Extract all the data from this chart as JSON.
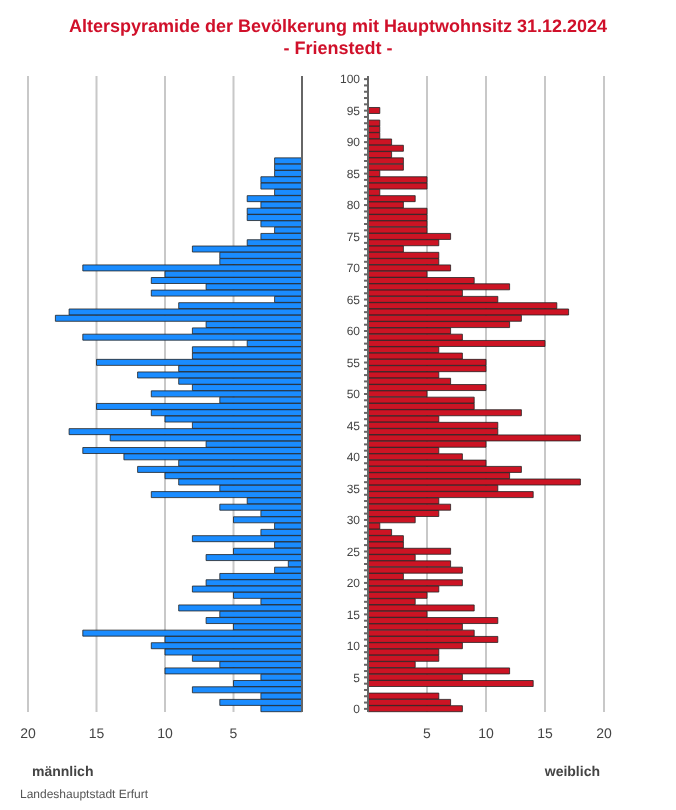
{
  "chart_data": [
    {
      "type": "bar",
      "orientation": "horizontal",
      "title": "Alterspyramide der Bevölkerung mit Hauptwohnsitz 31.12.2024\n- Frienstedt -",
      "xlabel": "männlich",
      "annotations": [
        "Landeshauptstadt Erfurt"
      ],
      "categories": [
        "100",
        null,
        null,
        null,
        null,
        "95",
        null,
        null,
        null,
        null,
        "90",
        null,
        null,
        null,
        null,
        "85",
        null,
        null,
        null,
        null,
        "80",
        null,
        null,
        null,
        null,
        "75",
        null,
        null,
        null,
        null,
        "70",
        null,
        null,
        null,
        null,
        "65",
        null,
        null,
        null,
        null,
        "60",
        null,
        null,
        null,
        null,
        "55",
        null,
        null,
        null,
        null,
        "50",
        null,
        null,
        null,
        null,
        "45",
        null,
        null,
        null,
        null,
        "40",
        null,
        null,
        null,
        null,
        "35",
        null,
        null,
        null,
        null,
        "30",
        null,
        null,
        null,
        null,
        "25",
        null,
        null,
        null,
        null,
        "20",
        null,
        null,
        null,
        null,
        "15",
        null,
        null,
        null,
        null,
        "10",
        null,
        null,
        null,
        null,
        "5",
        null,
        null,
        null,
        null,
        "0"
      ],
      "series": [
        {
          "color": "#1a8cff",
          "values": [
            0,
            0,
            0,
            0,
            0,
            0,
            0,
            0,
            0,
            0,
            0,
            0,
            0,
            2,
            2,
            2,
            3,
            3,
            2,
            4,
            3,
            4,
            4,
            3,
            2,
            3,
            4,
            8,
            6,
            6,
            16,
            10,
            11,
            7,
            11,
            2,
            9,
            17,
            18,
            7,
            8,
            16,
            4,
            8,
            8,
            15,
            9,
            12,
            9,
            8,
            11,
            6,
            15,
            11,
            10,
            8,
            17,
            14,
            7,
            16,
            13,
            9,
            12,
            10,
            9,
            6,
            11,
            4,
            6,
            3,
            5,
            2,
            3,
            8,
            2,
            5,
            7,
            1,
            2,
            6,
            7,
            8,
            5,
            3,
            9,
            6,
            7,
            5,
            16,
            10,
            11,
            10,
            8,
            6,
            10,
            3,
            5,
            8,
            3,
            6,
            3
          ]
        }
      ],
      "xlim": [
        20,
        0
      ],
      "xticks": [
        20,
        15,
        10,
        5,
        {
          "value": 0,
          "label": null
        }
      ],
      "grid": "x",
      "tick_labels": "x"
    },
    {
      "type": "bar",
      "orientation": "horizontal",
      "xlabel": "weiblich",
      "categories": [
        "100",
        null,
        null,
        null,
        null,
        "95",
        null,
        null,
        null,
        null,
        "90",
        null,
        null,
        null,
        null,
        "85",
        null,
        null,
        null,
        null,
        "80",
        null,
        null,
        null,
        null,
        "75",
        null,
        null,
        null,
        null,
        "70",
        null,
        null,
        null,
        null,
        "65",
        null,
        null,
        null,
        null,
        "60",
        null,
        null,
        null,
        null,
        "55",
        null,
        null,
        null,
        null,
        "50",
        null,
        null,
        null,
        null,
        "45",
        null,
        null,
        null,
        null,
        "40",
        null,
        null,
        null,
        null,
        "35",
        null,
        null,
        null,
        null,
        "30",
        null,
        null,
        null,
        null,
        "25",
        null,
        null,
        null,
        null,
        "20",
        null,
        null,
        null,
        null,
        "15",
        null,
        null,
        null,
        null,
        "10",
        null,
        null,
        null,
        null,
        "5",
        null,
        null,
        null,
        null,
        "0"
      ],
      "series": [
        {
          "color": "#cc1424",
          "values": [
            0,
            0,
            0,
            0,
            0,
            1,
            0,
            1,
            1,
            1,
            2,
            3,
            2,
            3,
            3,
            1,
            5,
            5,
            1,
            4,
            3,
            5,
            5,
            5,
            5,
            7,
            6,
            3,
            6,
            6,
            7,
            5,
            9,
            12,
            8,
            11,
            16,
            17,
            13,
            12,
            7,
            8,
            15,
            6,
            8,
            10,
            10,
            6,
            7,
            10,
            5,
            9,
            9,
            13,
            6,
            11,
            11,
            18,
            10,
            6,
            8,
            10,
            13,
            12,
            18,
            11,
            14,
            6,
            7,
            6,
            4,
            1,
            2,
            3,
            3,
            7,
            4,
            7,
            8,
            3,
            8,
            6,
            5,
            4,
            9,
            5,
            11,
            8,
            9,
            11,
            8,
            6,
            6,
            4,
            12,
            8,
            14,
            0,
            6,
            7,
            8
          ]
        }
      ],
      "xlim": [
        0,
        20
      ],
      "xticks": [
        {
          "value": 0,
          "label": null
        },
        5,
        10,
        15,
        20
      ],
      "grid": "x"
    }
  ]
}
